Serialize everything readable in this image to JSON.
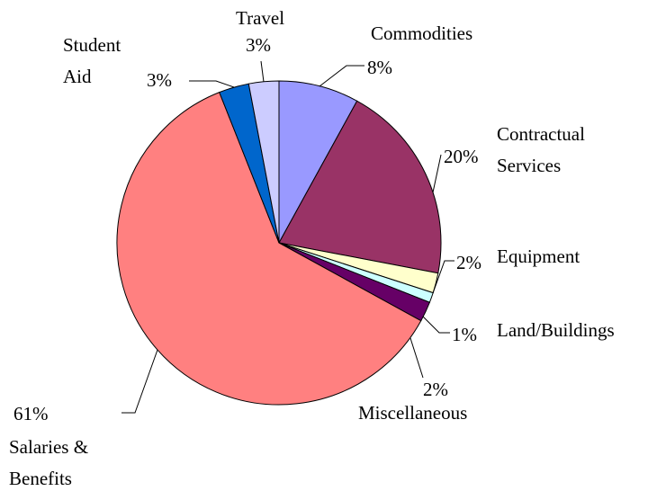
{
  "chart_data": {
    "type": "pie",
    "categories": [
      "Commodities",
      "Contractual Services",
      "Equipment",
      "Land/Buildings",
      "Miscellaneous",
      "Salaries & Benefits",
      "Student Aid",
      "Travel"
    ],
    "values": [
      8,
      20,
      2,
      1,
      2,
      61,
      3,
      3
    ],
    "value_labels": [
      "8%",
      "20%",
      "2%",
      "1%",
      "2%",
      "61%",
      "3%",
      "3%"
    ],
    "colors": [
      "#9999ff",
      "#993366",
      "#ffffcc",
      "#ccffff",
      "#660066",
      "#ff8080",
      "#0066cc",
      "#ccccff"
    ]
  }
}
